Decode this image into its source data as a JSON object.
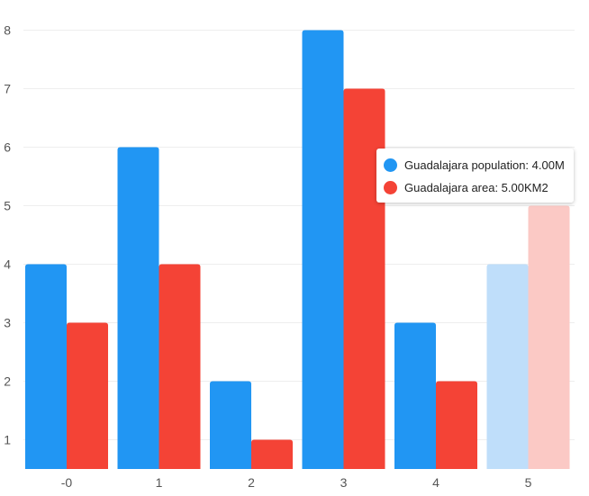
{
  "chart_data": {
    "type": "bar",
    "categories": [
      "-0",
      "1",
      "2",
      "3",
      "4",
      "5"
    ],
    "series": [
      {
        "name": "Guadalajara population",
        "values": [
          4,
          6,
          2,
          8,
          3,
          4
        ],
        "color": "#2196f3",
        "highlight_color": "#bfdefa"
      },
      {
        "name": "Guadalajara area",
        "values": [
          3,
          4,
          1,
          7,
          2,
          5
        ],
        "color": "#f44336",
        "highlight_color": "#fbc9c5"
      }
    ],
    "highlighted_category": "5",
    "yticks": [
      1,
      2,
      3,
      4,
      5,
      6,
      7,
      8
    ],
    "ylim": [
      0.5,
      8
    ],
    "grid": true,
    "title": "",
    "xlabel": "",
    "ylabel": ""
  },
  "tooltip": {
    "rows": [
      {
        "label": "Guadalajara population: 4.00M",
        "color": "#2196f3"
      },
      {
        "label": "Guadalajara area: 5.00KM2",
        "color": "#f44336"
      }
    ]
  }
}
